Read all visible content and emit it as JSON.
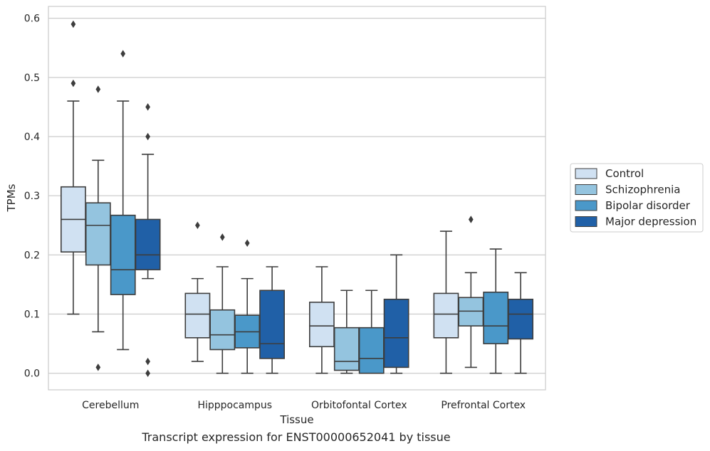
{
  "caption": "Transcript expression for ENST00000652041 by tissue",
  "chart_data": {
    "type": "box",
    "xlabel": "Tissue",
    "ylabel": "TPMs",
    "ylim": [
      -0.028,
      0.62
    ],
    "yticks": [
      0.0,
      0.1,
      0.2,
      0.3,
      0.4,
      0.5,
      0.6
    ],
    "grid": "horizontal",
    "legend_placement": "right",
    "categories": [
      "Cerebellum",
      "Hipppocampus",
      "Orbitofontal Cortex",
      "Prefrontal Cortex"
    ],
    "series": [
      {
        "name": "Control",
        "color": "#d0e1f2",
        "boxes": [
          {
            "whislo": 0.1,
            "q1": 0.205,
            "med": 0.26,
            "q3": 0.315,
            "whishi": 0.46,
            "fliers": [
              0.49,
              0.59
            ]
          },
          {
            "whislo": 0.02,
            "q1": 0.06,
            "med": 0.1,
            "q3": 0.135,
            "whishi": 0.16,
            "fliers": [
              0.25
            ]
          },
          {
            "whislo": 0.0,
            "q1": 0.045,
            "med": 0.08,
            "q3": 0.12,
            "whishi": 0.18,
            "fliers": []
          },
          {
            "whislo": 0.0,
            "q1": 0.06,
            "med": 0.1,
            "q3": 0.135,
            "whishi": 0.24,
            "fliers": []
          }
        ]
      },
      {
        "name": "Schizophrenia",
        "color": "#94c4df",
        "boxes": [
          {
            "whislo": 0.07,
            "q1": 0.183,
            "med": 0.25,
            "q3": 0.288,
            "whishi": 0.36,
            "fliers": [
              0.01,
              0.48
            ]
          },
          {
            "whislo": 0.0,
            "q1": 0.04,
            "med": 0.065,
            "q3": 0.107,
            "whishi": 0.18,
            "fliers": [
              0.23
            ]
          },
          {
            "whislo": 0.0,
            "q1": 0.005,
            "med": 0.02,
            "q3": 0.077,
            "whishi": 0.14,
            "fliers": []
          },
          {
            "whislo": 0.01,
            "q1": 0.08,
            "med": 0.105,
            "q3": 0.128,
            "whishi": 0.17,
            "fliers": [
              0.26
            ]
          }
        ]
      },
      {
        "name": "Bipolar disorder",
        "color": "#4a98c9",
        "boxes": [
          {
            "whislo": 0.04,
            "q1": 0.133,
            "med": 0.175,
            "q3": 0.267,
            "whishi": 0.46,
            "fliers": [
              0.54
            ]
          },
          {
            "whislo": 0.0,
            "q1": 0.043,
            "med": 0.07,
            "q3": 0.098,
            "whishi": 0.16,
            "fliers": [
              0.22
            ]
          },
          {
            "whislo": 0.0,
            "q1": 0.0,
            "med": 0.025,
            "q3": 0.077,
            "whishi": 0.14,
            "fliers": []
          },
          {
            "whislo": 0.0,
            "q1": 0.05,
            "med": 0.08,
            "q3": 0.137,
            "whishi": 0.21,
            "fliers": []
          }
        ]
      },
      {
        "name": "Major depression",
        "color": "#2060a7",
        "boxes": [
          {
            "whislo": 0.16,
            "q1": 0.175,
            "med": 0.2,
            "q3": 0.26,
            "whishi": 0.37,
            "fliers": [
              0.0,
              0.02,
              0.4,
              0.45
            ]
          },
          {
            "whislo": 0.0,
            "q1": 0.025,
            "med": 0.05,
            "q3": 0.14,
            "whishi": 0.18,
            "fliers": []
          },
          {
            "whislo": 0.0,
            "q1": 0.01,
            "med": 0.06,
            "q3": 0.125,
            "whishi": 0.2,
            "fliers": []
          },
          {
            "whislo": 0.0,
            "q1": 0.058,
            "med": 0.1,
            "q3": 0.125,
            "whishi": 0.17,
            "fliers": []
          }
        ]
      }
    ]
  }
}
